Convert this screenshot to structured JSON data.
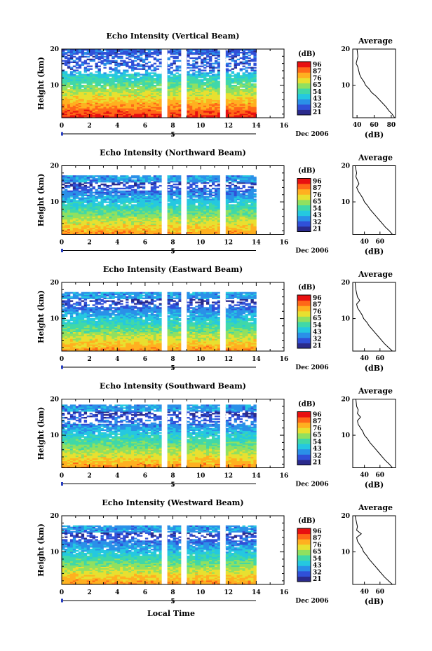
{
  "figure": {
    "xlabel": "Local Time",
    "date_label": "Dec 2006",
    "day_label": "5",
    "colorbar_unit": "(dB)",
    "colorbar_ticks": [
      "96",
      "87",
      "76",
      "65",
      "54",
      "43",
      "32",
      "21"
    ],
    "colormap": [
      "#2a2a8c",
      "#3050d8",
      "#2a90e8",
      "#25c8e0",
      "#40d8a8",
      "#90e060",
      "#e8e030",
      "#ffb020",
      "#ff6818",
      "#e81010"
    ]
  },
  "chart_data": [
    {
      "type": "heatmap",
      "title": "Echo Intensity (Vertical Beam)",
      "ylabel": "Height (km)",
      "xlim": [
        0,
        16
      ],
      "ylim": [
        1,
        20
      ],
      "xticks": [
        0,
        2,
        4,
        6,
        8,
        10,
        12,
        14,
        16
      ],
      "xtick_labels": [
        "0",
        "2",
        "4",
        "6",
        "8",
        "10",
        "12",
        "14",
        "16"
      ],
      "yticks": [
        10,
        20
      ],
      "ytick_labels": [
        "10",
        "20"
      ],
      "data_end_hour": 14,
      "data_gaps_hours": [
        [
          7.2,
          7.6
        ],
        [
          8.6,
          9.0
        ],
        [
          11.4,
          11.8
        ]
      ],
      "cloud_top_km": 20,
      "colorbar_label": "(dB)",
      "average_profile": {
        "title": "Average",
        "xlabel": "(dB)",
        "xlim": [
          35,
          85
        ],
        "xticks": [
          40,
          60,
          80
        ],
        "xtick_labels": [
          "40",
          "60",
          "80"
        ],
        "height_km": [
          20,
          18,
          17,
          16,
          15,
          14,
          13,
          12,
          11,
          10,
          9,
          8,
          7,
          6,
          5,
          4,
          3,
          2,
          1
        ],
        "db": [
          40,
          41,
          40,
          39,
          41,
          42,
          43,
          45,
          48,
          50,
          54,
          57,
          62,
          66,
          70,
          74,
          77,
          81,
          84
        ]
      }
    },
    {
      "type": "heatmap",
      "title": "Echo Intensity (Northward Beam)",
      "ylabel": "Height (km)",
      "xlim": [
        0,
        16
      ],
      "ylim": [
        1,
        20
      ],
      "xticks": [
        0,
        2,
        4,
        6,
        8,
        10,
        12,
        14,
        16
      ],
      "xtick_labels": [
        "0",
        "2",
        "4",
        "6",
        "8",
        "10",
        "12",
        "14",
        "16"
      ],
      "yticks": [
        10,
        20
      ],
      "ytick_labels": [
        "10",
        "20"
      ],
      "data_end_hour": 14,
      "data_gaps_hours": [
        [
          7.2,
          7.6
        ],
        [
          8.6,
          9.0
        ],
        [
          11.4,
          11.8
        ]
      ],
      "cloud_top_km": 17,
      "colorbar_label": "(dB)",
      "average_profile": {
        "title": "Average",
        "xlabel": "(dB)",
        "xlim": [
          25,
          80
        ],
        "xticks": [
          40,
          60
        ],
        "xtick_labels": [
          "40",
          "60"
        ],
        "height_km": [
          20,
          18,
          17,
          16,
          15,
          14,
          13,
          12,
          11,
          10,
          9,
          8,
          7,
          6,
          5,
          4,
          3,
          2,
          1
        ],
        "db": [
          28,
          30,
          29,
          31,
          33,
          30,
          32,
          35,
          38,
          40,
          44,
          47,
          51,
          55,
          59,
          63,
          67,
          72,
          76
        ]
      }
    },
    {
      "type": "heatmap",
      "title": "Echo Intensity (Eastward Beam)",
      "ylabel": "Height (km)",
      "xlim": [
        0,
        16
      ],
      "ylim": [
        1,
        20
      ],
      "xticks": [
        0,
        2,
        4,
        6,
        8,
        10,
        12,
        14,
        16
      ],
      "xtick_labels": [
        "0",
        "2",
        "4",
        "6",
        "8",
        "10",
        "12",
        "14",
        "16"
      ],
      "yticks": [
        10,
        20
      ],
      "ytick_labels": [
        "10",
        "20"
      ],
      "data_end_hour": 14,
      "data_gaps_hours": [
        [
          7.2,
          7.6
        ],
        [
          8.6,
          9.0
        ],
        [
          11.4,
          11.8
        ]
      ],
      "cloud_top_km": 17,
      "colorbar_label": "(dB)",
      "average_profile": {
        "title": "Average",
        "xlabel": "(dB)",
        "xlim": [
          25,
          80
        ],
        "xticks": [
          40,
          60
        ],
        "xtick_labels": [
          "40",
          "60"
        ],
        "height_km": [
          20,
          18,
          17,
          16,
          15,
          14,
          13,
          12,
          11,
          10,
          9,
          8,
          7,
          6,
          5,
          4,
          3,
          2,
          1
        ],
        "db": [
          28,
          29,
          30,
          31,
          34,
          30,
          31,
          34,
          37,
          39,
          43,
          46,
          50,
          54,
          58,
          62,
          66,
          71,
          76
        ]
      }
    },
    {
      "type": "heatmap",
      "title": "Echo Intensity (Southward Beam)",
      "ylabel": "Height (km)",
      "xlim": [
        0,
        16
      ],
      "ylim": [
        1,
        20
      ],
      "xticks": [
        0,
        2,
        4,
        6,
        8,
        10,
        12,
        14,
        16
      ],
      "xtick_labels": [
        "0",
        "2",
        "4",
        "6",
        "8",
        "10",
        "12",
        "14",
        "16"
      ],
      "yticks": [
        10,
        20
      ],
      "ytick_labels": [
        "10",
        "20"
      ],
      "data_end_hour": 14,
      "data_gaps_hours": [
        [
          7.2,
          7.6
        ],
        [
          8.6,
          9.0
        ],
        [
          11.4,
          11.8
        ]
      ],
      "cloud_top_km": 18,
      "colorbar_label": "(dB)",
      "average_profile": {
        "title": "Average",
        "xlabel": "(dB)",
        "xlim": [
          25,
          80
        ],
        "xticks": [
          40,
          60
        ],
        "xtick_labels": [
          "40",
          "60"
        ],
        "height_km": [
          20,
          18,
          17,
          16,
          15,
          14,
          13,
          12,
          11,
          10,
          9,
          8,
          7,
          6,
          5,
          4,
          3,
          2,
          1
        ],
        "db": [
          29,
          30,
          32,
          31,
          35,
          31,
          32,
          35,
          38,
          40,
          44,
          47,
          51,
          55,
          59,
          63,
          67,
          72,
          76
        ]
      }
    },
    {
      "type": "heatmap",
      "title": "Echo Intensity (Westward Beam)",
      "ylabel": "Height (km)",
      "xlim": [
        0,
        16
      ],
      "ylim": [
        1,
        20
      ],
      "xticks": [
        0,
        2,
        4,
        6,
        8,
        10,
        12,
        14,
        16
      ],
      "xtick_labels": [
        "0",
        "2",
        "4",
        "6",
        "8",
        "10",
        "12",
        "14",
        "16"
      ],
      "yticks": [
        10,
        20
      ],
      "ytick_labels": [
        "10",
        "20"
      ],
      "data_end_hour": 14,
      "data_gaps_hours": [
        [
          7.2,
          7.6
        ],
        [
          8.6,
          9.0
        ],
        [
          11.4,
          11.8
        ]
      ],
      "cloud_top_km": 17,
      "colorbar_label": "(dB)",
      "average_profile": {
        "title": "Average",
        "xlabel": "(dB)",
        "xlim": [
          25,
          80
        ],
        "xticks": [
          40,
          60
        ],
        "xtick_labels": [
          "40",
          "60"
        ],
        "height_km": [
          20,
          18,
          17,
          16,
          15,
          14,
          13,
          12,
          11,
          10,
          9,
          8,
          7,
          6,
          5,
          4,
          3,
          2,
          1
        ],
        "db": [
          28,
          30,
          31,
          30,
          36,
          30,
          31,
          34,
          37,
          39,
          43,
          46,
          50,
          54,
          58,
          62,
          66,
          71,
          76
        ]
      }
    }
  ]
}
